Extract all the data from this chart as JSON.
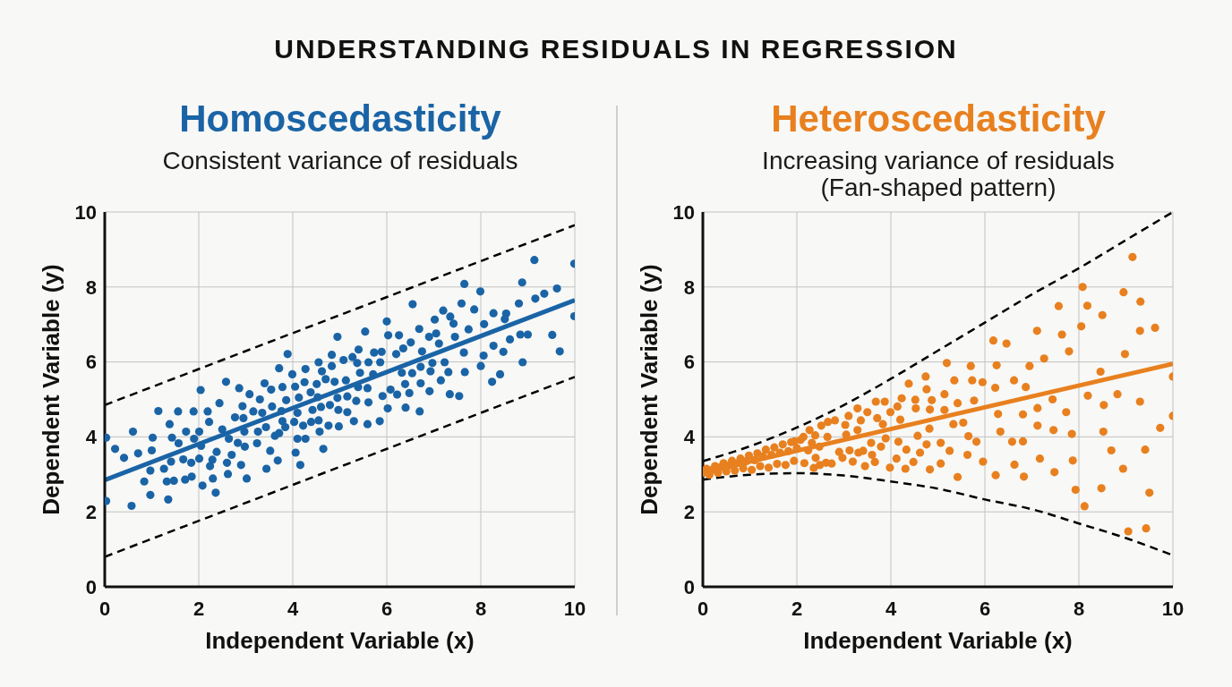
{
  "chart_data": [
    {
      "type": "other",
      "title": "UNDERSTANDING RESIDUALS IN REGRESSION"
    },
    {
      "type": "scatter",
      "title": "Homoscedasticity",
      "subtitle": "Consistent variance of residuals",
      "xlabel": "Independent Variable (x)",
      "ylabel": "Dependent Variable (y)",
      "xlim": [
        0,
        10
      ],
      "ylim": [
        0,
        10
      ],
      "xticks": [
        0,
        2,
        4,
        6,
        8,
        10
      ],
      "yticks": [
        0,
        2,
        4,
        6,
        8,
        10
      ],
      "grid": true,
      "marker": "circle",
      "series": [
        {
          "type": "line",
          "color": "#000000",
          "marker": "none",
          "line_style": "dashed",
          "x": [
            0,
            10
          ],
          "values": [
            4.85,
            9.65
          ]
        },
        {
          "type": "line",
          "color": "#000000",
          "marker": "none",
          "line_style": "dashed",
          "x": [
            0,
            10
          ],
          "values": [
            0.8,
            5.6
          ]
        },
        {
          "type": "scatter",
          "color": "#1a64a6",
          "x": [
            0.03,
            0.03,
            0.22,
            0.41,
            0.6,
            0.57,
            0.71,
            0.84,
            0.97,
            0.97,
            1.0,
            1.02,
            1.14,
            1.26,
            1.32,
            1.35,
            1.38,
            1.41,
            1.43,
            1.47,
            1.56,
            1.57,
            1.67,
            1.71,
            1.73,
            1.84,
            1.85,
            1.89,
            1.9,
            2.01,
            2.01,
            2.04,
            2.05,
            2.08,
            2.19,
            2.22,
            2.24,
            2.29,
            2.3,
            2.36,
            2.38,
            2.44,
            2.5,
            2.58,
            2.6,
            2.62,
            2.64,
            2.7,
            2.77,
            2.83,
            2.86,
            2.9,
            2.93,
            2.95,
            2.97,
            2.98,
            3.02,
            3.08,
            3.16,
            3.24,
            3.26,
            3.3,
            3.35,
            3.4,
            3.43,
            3.44,
            3.52,
            3.54,
            3.56,
            3.62,
            3.68,
            3.71,
            3.71,
            3.76,
            3.78,
            3.78,
            3.84,
            3.86,
            3.89,
            3.99,
            4.03,
            4.05,
            4.06,
            4.1,
            4.1,
            4.13,
            4.16,
            4.22,
            4.25,
            4.27,
            4.27,
            4.38,
            4.39,
            4.42,
            4.51,
            4.53,
            4.55,
            4.55,
            4.57,
            4.6,
            4.62,
            4.65,
            4.7,
            4.76,
            4.79,
            4.83,
            4.83,
            4.89,
            4.95,
            4.95,
            4.97,
            4.98,
            5.08,
            5.13,
            5.16,
            5.16,
            5.27,
            5.3,
            5.35,
            5.37,
            5.39,
            5.4,
            5.43,
            5.54,
            5.59,
            5.59,
            5.61,
            5.61,
            5.71,
            5.73,
            5.85,
            5.86,
            5.89,
            5.91,
            6.0,
            6.02,
            6.03,
            6.08,
            6.2,
            6.22,
            6.26,
            6.32,
            6.35,
            6.39,
            6.4,
            6.48,
            6.51,
            6.54,
            6.55,
            6.69,
            6.7,
            6.72,
            6.72,
            6.75,
            6.9,
            6.91,
            6.93,
            6.97,
            7.02,
            7.05,
            7.11,
            7.15,
            7.2,
            7.23,
            7.31,
            7.34,
            7.35,
            7.42,
            7.45,
            7.54,
            7.59,
            7.64,
            7.65,
            7.66,
            7.74,
            7.86,
            7.99,
            8.0,
            8.06,
            8.07,
            8.24,
            8.27,
            8.27,
            8.41,
            8.48,
            8.51,
            8.54,
            8.62,
            8.81,
            8.84,
            8.88,
            8.89,
            9.0,
            9.14,
            9.16,
            9.35,
            9.52,
            9.62,
            9.68,
            9.99,
            9.99
          ],
          "values": [
            3.98,
            2.29,
            3.68,
            3.44,
            4.14,
            2.16,
            3.56,
            2.81,
            2.45,
            3.1,
            3.64,
            3.98,
            4.69,
            3.15,
            2.81,
            2.33,
            4.34,
            3.34,
            3.98,
            2.83,
            4.68,
            3.83,
            3.4,
            2.86,
            4.14,
            3.31,
            2.94,
            4.68,
            3.95,
            4.14,
            3.42,
            5.25,
            3.76,
            2.7,
            4.68,
            4.4,
            3.22,
            3.39,
            2.89,
            2.51,
            3.6,
            4.9,
            4.2,
            5.47,
            3.31,
            3.01,
            3.95,
            3.52,
            4.52,
            3.84,
            5.3,
            3.25,
            4.82,
            4.5,
            4.14,
            3.74,
            2.89,
            5.14,
            4.68,
            3.83,
            4.14,
            5.0,
            4.64,
            5.43,
            4.26,
            3.15,
            3.63,
            5.26,
            4.81,
            4.03,
            3.37,
            4.1,
            5.83,
            4.69,
            5.33,
            4.42,
            4.26,
            4.98,
            6.21,
            5.67,
            4.4,
            5.34,
            3.58,
            4.64,
            3.95,
            5.05,
            3.25,
            4.3,
            5.46,
            5.81,
            3.95,
            5.19,
            4.4,
            4.72,
            5.41,
            5.06,
            4.44,
            5.99,
            4.14,
            4.8,
            5.75,
            3.68,
            5.54,
            4.3,
            4.85,
            6.19,
            5.89,
            5.47,
            6.67,
            5.04,
            4.72,
            4.28,
            6.05,
            5.51,
            5.08,
            4.66,
            6.13,
            4.42,
            4.96,
            5.97,
            5.33,
            6.33,
            5.71,
            6.81,
            4.34,
            5.3,
            5.99,
            4.92,
            5.67,
            6.25,
            4.42,
            5.99,
            6.27,
            5.09,
            7.08,
            4.76,
            6.71,
            5.26,
            6.21,
            5.13,
            6.71,
            5.71,
            6.36,
            5.41,
            4.78,
            5.17,
            6.52,
            5.7,
            7.54,
            6.88,
            4.68,
            5.87,
            5.43,
            6.28,
            6.67,
            5.22,
            5.75,
            5.97,
            7.13,
            6.76,
            6.49,
            5.51,
            7.37,
            5.99,
            5.73,
            5.14,
            7.21,
            7.02,
            6.67,
            5.09,
            7.56,
            6.25,
            8.08,
            5.73,
            6.87,
            7.4,
            7.88,
            5.89,
            6.17,
            7.01,
            5.47,
            6.43,
            7.3,
            5.67,
            6.27,
            7.14,
            7.29,
            6.6,
            7.56,
            6.73,
            8.12,
            5.99,
            6.73,
            8.72,
            7.69,
            7.82,
            6.72,
            7.96,
            6.28,
            8.62,
            7.22
          ]
        },
        {
          "type": "line",
          "color": "#1a64a6",
          "marker": "none",
          "line_style": "solid",
          "x": [
            0,
            10
          ],
          "values": [
            2.85,
            7.65
          ]
        }
      ]
    },
    {
      "type": "scatter",
      "title": "Heteroscedasticity",
      "subtitle": "Increasing variance of residuals\n(Fan-shaped pattern)",
      "xlabel": "Independent Variable (x)",
      "ylabel": "Dependent Variable (y)",
      "xlim": [
        0,
        10
      ],
      "ylim": [
        0,
        10
      ],
      "xticks": [
        0,
        2,
        4,
        6,
        8,
        10
      ],
      "yticks": [
        0,
        2,
        4,
        6,
        8,
        10
      ],
      "grid": true,
      "marker": "circle",
      "series": [
        {
          "type": "line",
          "color": "#000000",
          "marker": "none",
          "line_style": "dashed",
          "x": [
            0,
            1,
            2,
            3,
            4,
            5,
            6,
            7,
            8,
            9,
            10
          ],
          "values": [
            3.35,
            3.75,
            4.25,
            4.85,
            5.55,
            6.3,
            7.05,
            7.8,
            8.5,
            9.25,
            10
          ]
        },
        {
          "type": "line",
          "color": "#000000",
          "marker": "none",
          "line_style": "dashed",
          "x": [
            0,
            1,
            2,
            3,
            4,
            5,
            6,
            7,
            8,
            9,
            10
          ],
          "values": [
            2.86,
            2.99,
            3.03,
            2.97,
            2.81,
            2.62,
            2.33,
            2.07,
            1.69,
            1.3,
            0.84
          ]
        },
        {
          "type": "line",
          "color": "#e8801f",
          "marker": "none",
          "line_style": "solid",
          "x": [
            0,
            10
          ],
          "values": [
            3.05,
            5.95
          ]
        },
        {
          "type": "scatter",
          "color": "#e8801f",
          "x": [
            0.02,
            0.08,
            0.14,
            0.2,
            0.26,
            0.32,
            0.38,
            0.44,
            0.5,
            0.56,
            0.62,
            0.68,
            0.74,
            0.8,
            0.86,
            0.92,
            0.98,
            1.04,
            1.1,
            1.16,
            1.22,
            1.28,
            1.34,
            1.4,
            1.46,
            1.52,
            1.58,
            1.64,
            1.7,
            1.76,
            1.82,
            1.88,
            1.94,
            2.0,
            2.08,
            2.16,
            2.24,
            2.32,
            2.4,
            2.48,
            2.27,
            2.14,
            1.95,
            2.36,
            2.39,
            2.49,
            2.52,
            2.62,
            2.65,
            2.66,
            2.74,
            2.81,
            2.9,
            2.97,
            3.03,
            3.05,
            3.1,
            3.12,
            3.19,
            3.29,
            3.29,
            3.31,
            3.36,
            3.41,
            3.45,
            3.5,
            3.58,
            3.6,
            3.66,
            3.68,
            3.71,
            3.79,
            3.83,
            3.87,
            3.89,
            3.98,
            3.99,
            4.12,
            4.14,
            4.16,
            4.2,
            4.23,
            4.31,
            4.33,
            4.38,
            4.48,
            4.52,
            4.53,
            4.57,
            4.62,
            4.74,
            4.76,
            4.76,
            4.83,
            4.82,
            4.83,
            4.87,
            5.06,
            5.06,
            5.14,
            5.14,
            5.19,
            5.25,
            5.33,
            5.35,
            5.42,
            5.42,
            5.54,
            5.63,
            5.65,
            5.7,
            5.73,
            5.77,
            5.82,
            5.95,
            5.96,
            6.18,
            6.22,
            6.25,
            6.23,
            6.28,
            6.33,
            6.46,
            6.58,
            6.62,
            6.63,
            6.81,
            6.81,
            6.83,
            6.87,
            6.95,
            7.11,
            7.12,
            7.12,
            7.17,
            7.26,
            7.44,
            7.46,
            7.48,
            7.57,
            7.64,
            7.73,
            7.79,
            7.85,
            7.87,
            7.93,
            8.05,
            8.08,
            8.12,
            8.18,
            8.19,
            8.46,
            8.48,
            8.5,
            8.52,
            8.53,
            8.69,
            8.82,
            8.95,
            8.94,
            8.98,
            9.05,
            9.14,
            9.3,
            9.3,
            9.31,
            9.41,
            9.43,
            9.5,
            9.62,
            9.73,
            10.0,
            10.0
          ],
          "values": [
            3.05,
            3.15,
            2.99,
            3.12,
            3.22,
            3.04,
            3.19,
            3.3,
            3.08,
            3.24,
            3.36,
            3.1,
            3.3,
            3.42,
            3.16,
            3.35,
            3.5,
            3.12,
            3.38,
            3.56,
            3.22,
            3.48,
            3.66,
            3.18,
            3.52,
            3.72,
            3.28,
            3.58,
            3.8,
            3.25,
            3.62,
            3.86,
            3.36,
            3.7,
            3.92,
            3.3,
            3.64,
            3.84,
            3.44,
            3.74,
            4.18,
            4.0,
            3.88,
            3.17,
            4.04,
            3.25,
            4.3,
            3.31,
            4.0,
            4.4,
            3.29,
            4.44,
            3.6,
            3.44,
            4.32,
            4.06,
            4.56,
            3.64,
            3.34,
            4.18,
            4.76,
            3.58,
            4.44,
            3.63,
            3.22,
            4.66,
            3.84,
            3.52,
            3.33,
            4.94,
            4.5,
            3.74,
            4.34,
            4.94,
            3.96,
            3.18,
            4.66,
            3.42,
            4.81,
            3.87,
            4.46,
            5.03,
            3.15,
            3.66,
            5.42,
            3.33,
            4.99,
            4.76,
            4.03,
            3.58,
            5.61,
            5.27,
            3.8,
            3.13,
            4.22,
            4.73,
            4.98,
            3.84,
            3.29,
            5.14,
            4.72,
            5.97,
            3.63,
            4.34,
            5.51,
            4.9,
            2.93,
            4.38,
            3.52,
            4.02,
            5.89,
            5.51,
            4.97,
            3.87,
            5.46,
            3.34,
            6.57,
            5.31,
            5.91,
            2.98,
            4.61,
            4.14,
            6.49,
            3.87,
            5.51,
            3.26,
            4.6,
            3.88,
            2.94,
            5.33,
            5.89,
            6.83,
            4.77,
            4.3,
            3.42,
            6.09,
            5.0,
            4.18,
            3.06,
            7.49,
            6.73,
            4.66,
            6.28,
            4.08,
            3.37,
            2.59,
            6.95,
            8.0,
            2.15,
            7.5,
            5.1,
            5.74,
            2.63,
            7.25,
            4.14,
            4.85,
            3.64,
            5.14,
            7.86,
            3.15,
            6.21,
            1.48,
            8.8,
            6.83,
            4.94,
            7.61,
            3.66,
            1.56,
            2.51,
            6.91,
            4.24,
            5.61,
            4.56
          ]
        }
      ]
    }
  ]
}
